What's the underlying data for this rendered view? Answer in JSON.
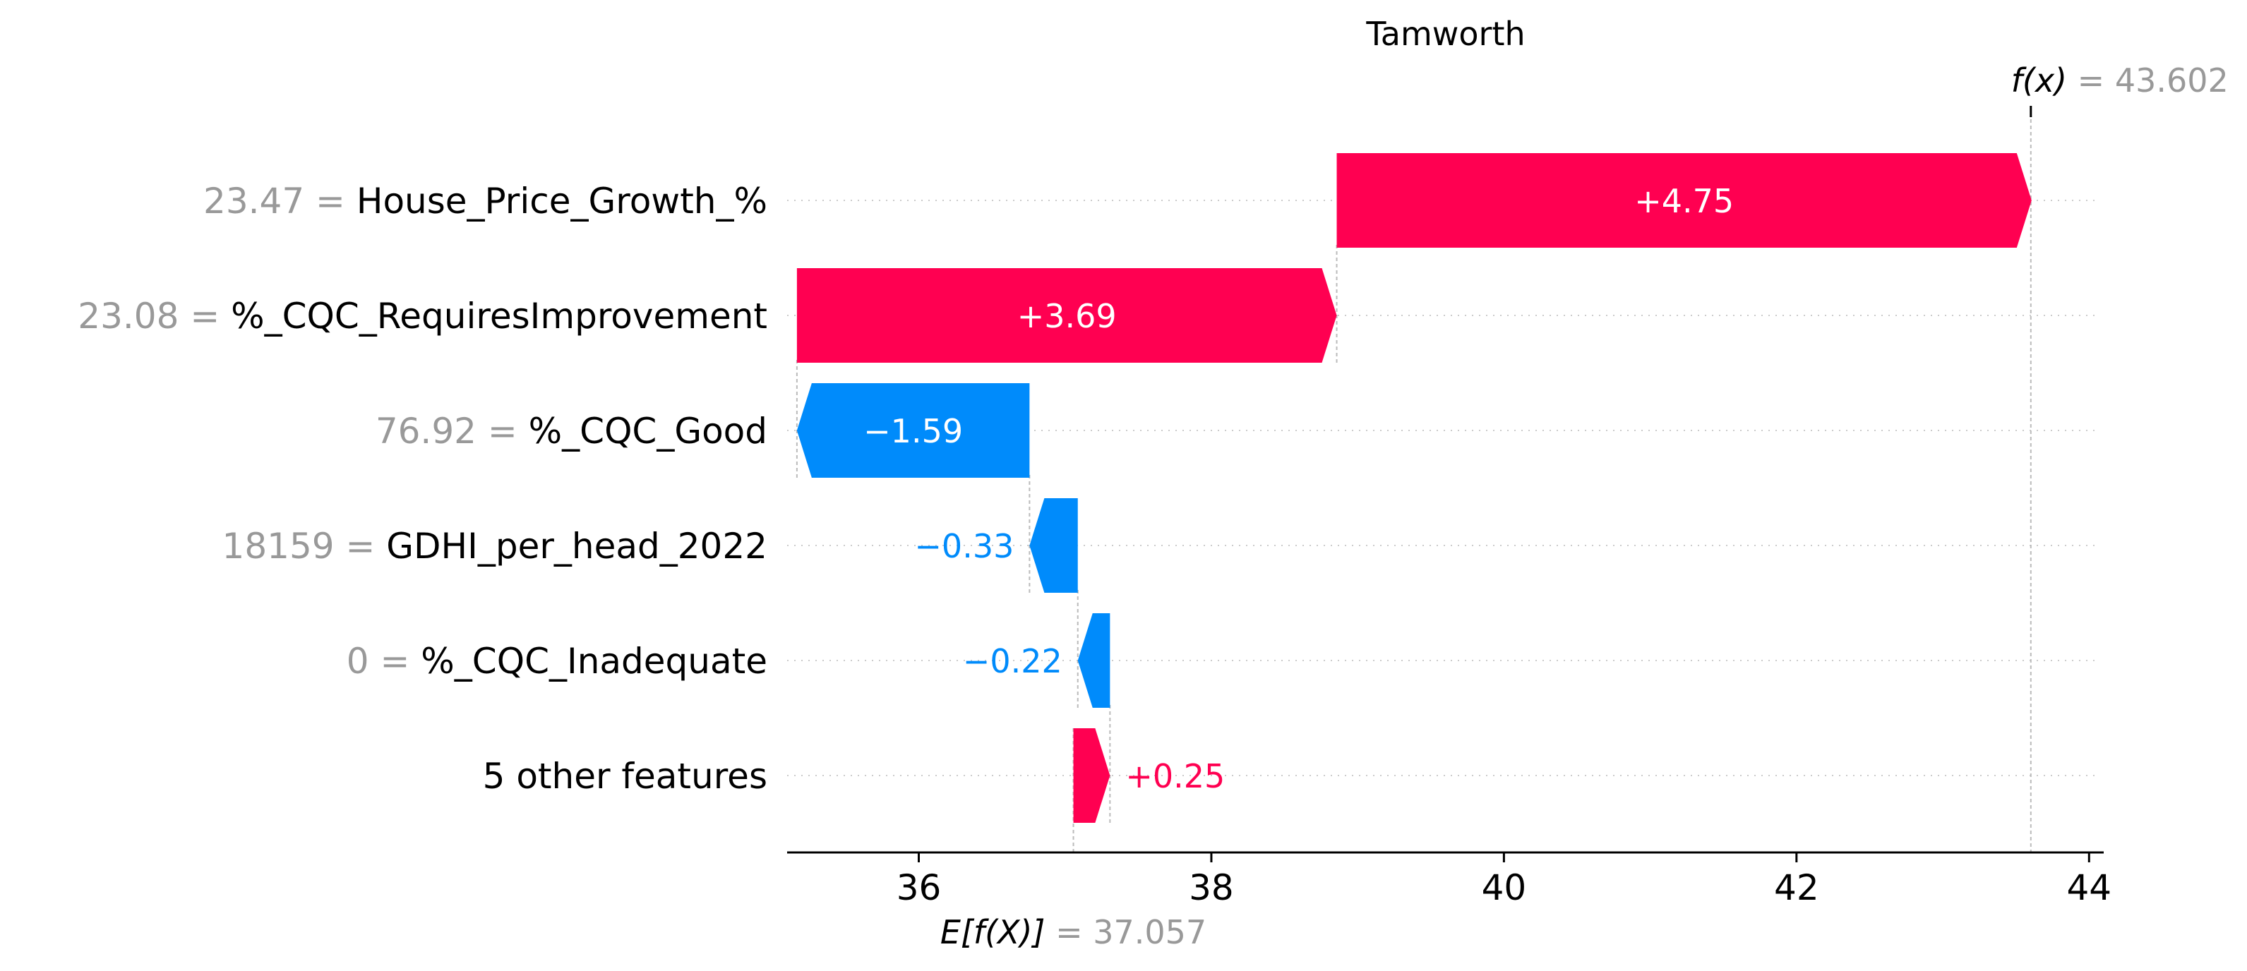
{
  "chart_data": {
    "type": "waterfall",
    "title": "Tamworth",
    "base_value": 37.057,
    "base_value_label": "= 37.057",
    "output_value": 43.602,
    "output_value_label": "= 43.602",
    "xlim": [
      35.1,
      44.1
    ],
    "xticks": [
      36,
      38,
      40,
      42,
      44
    ],
    "xtick_labels": [
      "36",
      "38",
      "40",
      "42",
      "44"
    ],
    "features": [
      {
        "value_label": "23.47 =",
        "name": "House_Price_Growth_%",
        "shap": 4.75,
        "shap_label": "+4.75"
      },
      {
        "value_label": "23.08 =",
        "name": "%_CQC_RequiresImprovement",
        "shap": 3.69,
        "shap_label": "+3.69"
      },
      {
        "value_label": "76.92 =",
        "name": "%_CQC_Good",
        "shap": -1.59,
        "shap_label": "−1.59"
      },
      {
        "value_label": "18159 =",
        "name": "GDHI_per_head_2022",
        "shap": -0.33,
        "shap_label": "−0.33"
      },
      {
        "value_label": "0 =",
        "name": "%_CQC_Inadequate",
        "shap": -0.22,
        "shap_label": "−0.22"
      },
      {
        "value_label": "",
        "name": "5 other features",
        "shap": 0.25,
        "shap_label": "+0.25"
      }
    ],
    "colors": {
      "positive": "#ff0051",
      "negative": "#008bfb",
      "muted": "#999999"
    }
  }
}
